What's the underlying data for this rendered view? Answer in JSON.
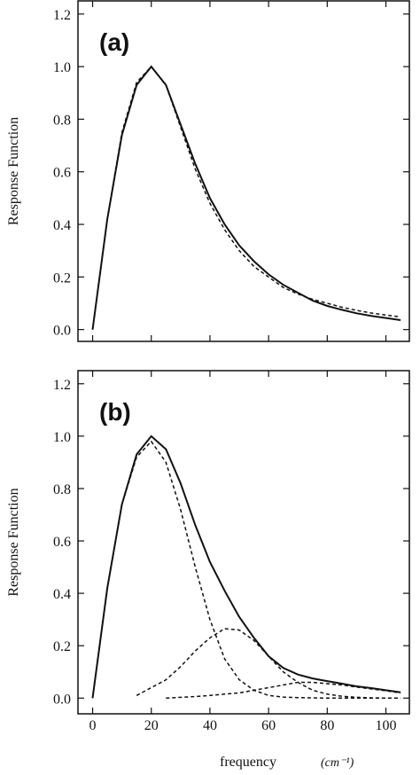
{
  "chart_data": [
    {
      "type": "line",
      "annotation": "(a)",
      "y_label": "Response Function",
      "x": [
        0,
        5,
        10,
        15,
        20,
        25,
        30,
        35,
        40,
        45,
        50,
        55,
        60,
        65,
        70,
        75,
        80,
        85,
        90,
        95,
        100,
        105
      ],
      "series": [
        {
          "color": "#111111",
          "style": "solid",
          "values": [
            0,
            0.42,
            0.74,
            0.93,
            1.0,
            0.93,
            0.78,
            0.63,
            0.5,
            0.4,
            0.32,
            0.26,
            0.21,
            0.17,
            0.14,
            0.11,
            0.09,
            0.075,
            0.062,
            0.052,
            0.044,
            0.036
          ]
        },
        {
          "color": "#111111",
          "style": "dashed",
          "values": [
            0,
            0.42,
            0.75,
            0.94,
            1.0,
            0.93,
            0.77,
            0.61,
            0.48,
            0.38,
            0.3,
            0.24,
            0.2,
            0.16,
            0.135,
            0.115,
            0.1,
            0.085,
            0.073,
            0.063,
            0.055,
            0.048
          ]
        }
      ],
      "xlim": [
        -5,
        108
      ],
      "xticks": [
        0,
        20,
        40,
        60,
        80,
        100
      ],
      "ylim": [
        -0.045,
        1.25
      ],
      "yticks": [
        {
          "value": 0,
          "label": "0.0"
        },
        0.2,
        0.4,
        0.6,
        0.8,
        {
          "value": 1,
          "label": "1.0"
        },
        1.2
      ]
    },
    {
      "type": "line",
      "annotation": "(b)",
      "y_label": "Response Function",
      "x_label": "frequency",
      "x_unit": "(cm⁻¹)",
      "x": [
        0,
        5,
        10,
        15,
        20,
        25,
        30,
        35,
        40,
        45,
        50,
        55,
        60,
        65,
        70,
        75,
        80,
        85,
        90,
        95,
        100,
        105
      ],
      "series": [
        {
          "color": "#111111",
          "style": "solid",
          "values": [
            0,
            0.42,
            0.74,
            0.93,
            1.0,
            0.95,
            0.82,
            0.66,
            0.52,
            0.41,
            0.31,
            0.23,
            0.16,
            0.115,
            0.09,
            0.075,
            0.065,
            0.055,
            0.045,
            0.038,
            0.03,
            0.022
          ]
        },
        {
          "color": "#111111",
          "style": "dashed",
          "values": [
            0,
            0.42,
            0.74,
            0.92,
            0.98,
            0.9,
            0.72,
            0.5,
            0.3,
            0.15,
            0.07,
            0.03,
            0.01,
            0.004,
            0.002,
            0.001,
            0,
            0,
            0,
            0,
            0,
            0
          ]
        },
        {
          "color": "#111111",
          "style": "dashed",
          "values": [
            null,
            null,
            null,
            0.01,
            0.04,
            0.07,
            0.12,
            0.18,
            0.23,
            0.265,
            0.26,
            0.22,
            0.16,
            0.1,
            0.06,
            0.03,
            0.015,
            0.007,
            0.003,
            0.001,
            0,
            0
          ]
        },
        {
          "color": "#111111",
          "style": "dashed",
          "values": [
            null,
            null,
            null,
            null,
            null,
            0,
            0.003,
            0.006,
            0.01,
            0.015,
            0.02,
            0.03,
            0.04,
            0.05,
            0.06,
            0.06,
            0.055,
            0.05,
            0.042,
            0.035,
            0.028,
            0.02
          ]
        }
      ],
      "xlim": [
        -5,
        108
      ],
      "xticks": [
        0,
        20,
        40,
        60,
        80,
        100
      ],
      "ylim": [
        -0.06,
        1.25
      ],
      "yticks": [
        {
          "value": 0,
          "label": "0.0"
        },
        0.2,
        0.4,
        0.6,
        0.8,
        {
          "value": 1,
          "label": "1.0"
        },
        1.2
      ]
    }
  ]
}
